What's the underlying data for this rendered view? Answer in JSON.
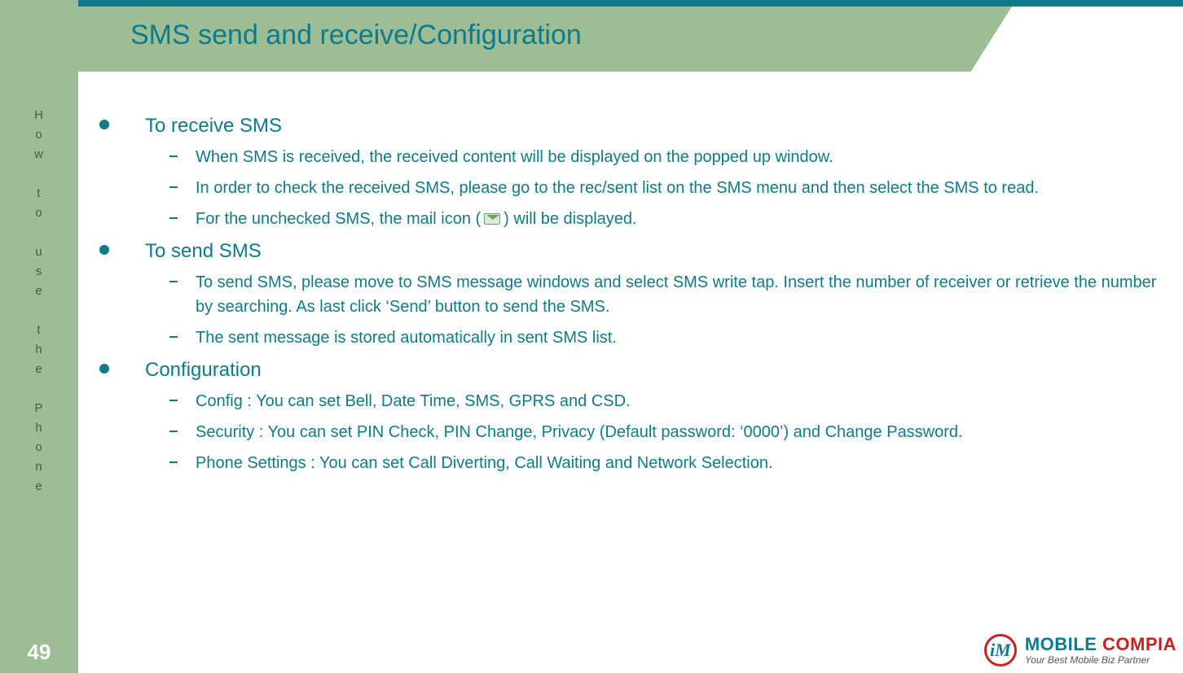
{
  "colors": {
    "accent_teal": "#0e7b8c",
    "sidebar_green": "#9dbd94",
    "sidebar_text": "#4a5a46",
    "white": "#ffffff",
    "logo_red": "#c92020",
    "logo_tag": "#555555",
    "mail_border": "#6ea06a",
    "mail_fill": "#d9ecd6"
  },
  "typography": {
    "title_fontsize": 34,
    "l1_fontsize": 24,
    "l2_fontsize": 20,
    "sidebar_fontsize": 15,
    "page_num_fontsize": 26
  },
  "sidebar": {
    "label_lines": [
      "H",
      "o",
      "w",
      "",
      "t",
      "o",
      "",
      "u",
      "s",
      "e",
      "",
      "t",
      "h",
      "e",
      "",
      "P",
      "h",
      "o",
      "n",
      "e"
    ],
    "page_number": "49"
  },
  "title": "SMS send and receive/Configuration",
  "sections": [
    {
      "heading": "To receive SMS",
      "items": [
        "When SMS is received, the received content will be displayed on the popped up window.",
        "In order to check the received SMS, please go to the rec/sent list on the SMS menu and then select the SMS to read.",
        {
          "pre": "For the unchecked SMS, the mail icon (",
          "icon": "mail",
          "post": ") will be displayed."
        }
      ]
    },
    {
      "heading": "To send SMS",
      "items": [
        "To send SMS, please move to SMS message windows and select SMS write tap. Insert the number of receiver or retrieve the number by searching. As last click ‘Send’ button to send the SMS.",
        "The sent message is stored automatically in sent SMS list."
      ]
    },
    {
      "heading": "Configuration",
      "items": [
        "Config : You can set Bell, Date Time, SMS, GPRS and CSD.",
        "Security : You can set PIN Check, PIN Change, Privacy (Default password: ‘0000’) and Change Password.",
        "Phone Settings : You can set Call Diverting, Call Waiting and Network Selection."
      ]
    }
  ],
  "logo": {
    "mark_letter": "iM",
    "name_part1": "MOBILE ",
    "name_part2": "COMPIA",
    "tagline": "Your Best Mobile Biz Partner"
  }
}
